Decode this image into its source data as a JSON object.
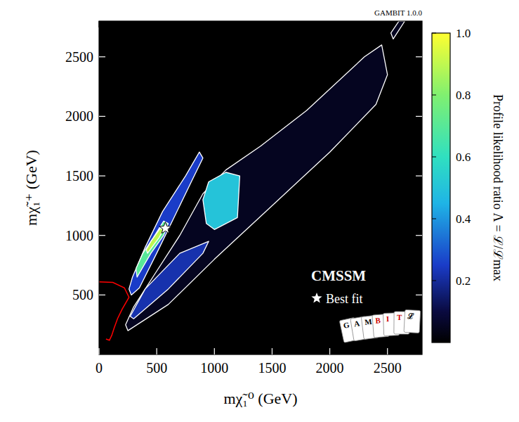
{
  "chart_data": {
    "type": "contour",
    "watermark": "GAMBIT 1.0.0",
    "annotation": "CMSSM",
    "x_label": "mχ̃₁⁰ (GeV)",
    "y_label": "mχ̃₁⁺ (GeV)",
    "xlim": [
      0,
      2800
    ],
    "ylim": [
      0,
      2800
    ],
    "xticks": [
      0,
      500,
      1000,
      1500,
      2000,
      2500
    ],
    "yticks": [
      500,
      1000,
      1500,
      2000,
      2500
    ],
    "regions": [
      {
        "value": 0.05,
        "x": [
          250,
          600,
          1000,
          1500,
          2000,
          2400,
          2500,
          2450,
          2300,
          1800,
          1400,
          1100,
          900,
          700,
          500,
          300,
          230
        ],
        "y": [
          200,
          420,
          800,
          1250,
          1700,
          2100,
          2350,
          2600,
          2500,
          2050,
          1750,
          1550,
          1350,
          1000,
          700,
          400,
          250
        ]
      },
      {
        "value": 0.05,
        "x": [
          2530,
          2550,
          2650,
          2600
        ],
        "y": [
          2700,
          2650,
          2800,
          2800
        ]
      },
      {
        "value": 0.22,
        "x": [
          270,
          300,
          600,
          900,
          950,
          700,
          400
        ],
        "y": [
          320,
          300,
          550,
          850,
          950,
          850,
          550
        ]
      },
      {
        "value": 0.5,
        "x": [
          930,
          1000,
          1200,
          1220,
          1100,
          950,
          900
        ],
        "y": [
          1100,
          1050,
          1150,
          1500,
          1530,
          1450,
          1300
        ]
      },
      {
        "value": 0.25,
        "x": [
          280,
          350,
          500,
          650,
          800,
          900,
          870,
          750,
          550,
          400,
          290,
          260
        ],
        "y": [
          500,
          560,
          850,
          1150,
          1450,
          1650,
          1700,
          1500,
          1200,
          900,
          650,
          550
        ]
      },
      {
        "value": 0.7,
        "x": [
          330,
          450,
          560,
          600,
          560,
          470,
          380,
          320
        ],
        "y": [
          650,
          850,
          1000,
          1100,
          1120,
          980,
          850,
          720
        ]
      },
      {
        "value": 0.9,
        "x": [
          420,
          520,
          560,
          530,
          450,
          410
        ],
        "y": [
          850,
          980,
          1050,
          1060,
          950,
          880
        ]
      }
    ],
    "lines": [
      {
        "color": "#ff0000",
        "x": [
          0,
          120,
          220,
          260,
          200,
          160,
          130,
          110,
          90,
          60
        ],
        "y": [
          610,
          605,
          560,
          480,
          380,
          300,
          220,
          160,
          120,
          130
        ]
      }
    ],
    "best_fit": {
      "x": 575,
      "y": 1060,
      "label": "Best fit"
    },
    "colorbar": {
      "label": "Profile likelihood ratio Λ = ℒ/ℒmax",
      "range": [
        0,
        1
      ],
      "ticks": [
        0.2,
        0.4,
        0.6,
        0.8,
        {
          "value": 1,
          "label": "1.0"
        }
      ]
    },
    "logo": {
      "letters": [
        "G",
        "A",
        "M",
        "B",
        "I",
        "T",
        "ℒ"
      ],
      "colors": [
        "#000000",
        "#000000",
        "#000000",
        "#cc0000",
        "#cc0000",
        "#cc0000",
        "#000000"
      ]
    }
  }
}
